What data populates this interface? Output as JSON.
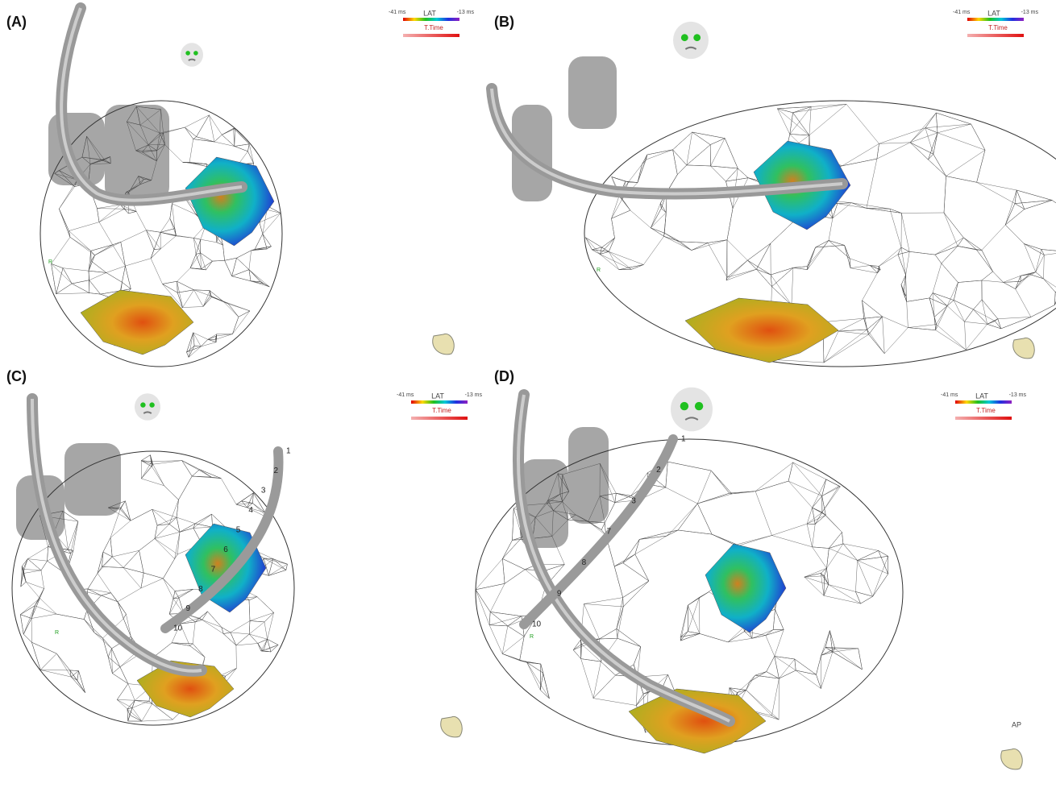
{
  "panels": [
    {
      "label": "(A)",
      "legend": {
        "min": "-41 ms",
        "title": "LAT",
        "max": "-13 ms",
        "secondary": "T.Time"
      },
      "orientation": "R",
      "electrodes": []
    },
    {
      "label": "(B)",
      "legend": {
        "min": "-41 ms",
        "title": "LAT",
        "max": "-13 ms",
        "secondary": "T.Time"
      },
      "orientation": "R",
      "electrodes": []
    },
    {
      "label": "(C)",
      "legend": {
        "min": "-41 ms",
        "title": "LAT",
        "max": "-13 ms",
        "secondary": "T.Time"
      },
      "orientation": "R",
      "electrodes": [
        "1",
        "2",
        "3",
        "4",
        "5",
        "6",
        "7",
        "8",
        "9",
        "10"
      ]
    },
    {
      "label": "(D)",
      "legend": {
        "min": "-41 ms",
        "title": "LAT",
        "max": "-13 ms",
        "secondary": "T.Time"
      },
      "orientation": "R",
      "view": "AP",
      "electrodes": [
        "1",
        "2",
        "3",
        "7",
        "8",
        "9",
        "10"
      ]
    }
  ]
}
